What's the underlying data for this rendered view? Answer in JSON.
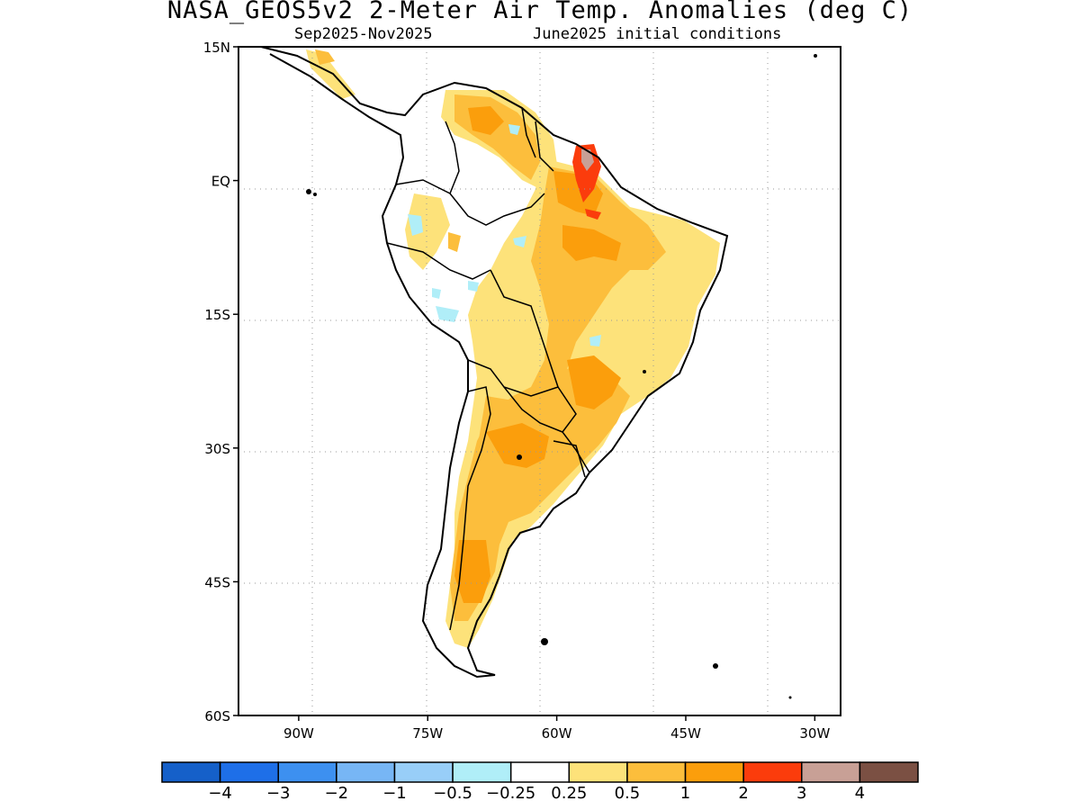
{
  "title": "NASA_GEOS5v2 2-Meter Air Temp. Anomalies (deg C)",
  "subtitle_left": "Sep2025-Nov2025",
  "subtitle_right": "June2025 initial conditions",
  "map": {
    "region": "South America",
    "lat_range": [
      -60,
      15
    ],
    "lon_range": [
      -97,
      -27
    ],
    "lat_ticks": [
      {
        "value": 15,
        "label": "15N"
      },
      {
        "value": 0,
        "label": "EQ"
      },
      {
        "value": -15,
        "label": "15S"
      },
      {
        "value": -30,
        "label": "30S"
      },
      {
        "value": -45,
        "label": "45S"
      },
      {
        "value": -60,
        "label": "60S"
      }
    ],
    "lon_ticks": [
      {
        "value": -90,
        "label": "90W"
      },
      {
        "value": -75,
        "label": "75W"
      },
      {
        "value": -60,
        "label": "60W"
      },
      {
        "value": -45,
        "label": "45W"
      },
      {
        "value": -30,
        "label": "30W"
      }
    ],
    "grid": "dotted"
  },
  "colorbar": {
    "colors": [
      "#1560c9",
      "#1e6fe8",
      "#3d90f0",
      "#77b6f5",
      "#98cef8",
      "#b0eef8",
      "#ffffff",
      "#fde27a",
      "#fcbe3c",
      "#fb9e0c",
      "#fb3c0c",
      "#c8a096",
      "#7b5043"
    ],
    "labels": [
      "−4",
      "−3",
      "−2",
      "−1",
      "−0.5",
      "−0.25",
      "0.25",
      "0.5",
      "1",
      "2",
      "3",
      "4"
    ]
  }
}
